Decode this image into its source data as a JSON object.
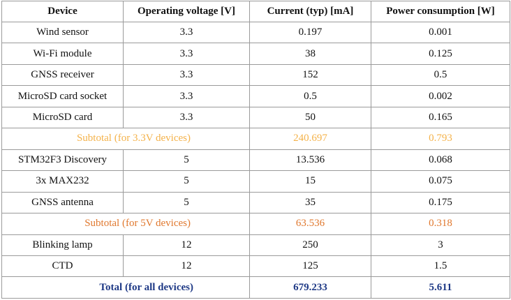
{
  "headers": [
    "Device",
    "Operating voltage [V]",
    "Current (typ) [mA]",
    "Power consumption [W]"
  ],
  "group_3v3": [
    {
      "device": "Wind sensor",
      "voltage": "3.3",
      "current": "0.197",
      "power": "0.001"
    },
    {
      "device": "Wi-Fi module",
      "voltage": "3.3",
      "current": "38",
      "power": "0.125"
    },
    {
      "device": "GNSS receiver",
      "voltage": "3.3",
      "current": "152",
      "power": "0.5"
    },
    {
      "device": "MicroSD card socket",
      "voltage": "3.3",
      "current": "0.5",
      "power": "0.002"
    },
    {
      "device": "MicroSD card",
      "voltage": "3.3",
      "current": "50",
      "power": "0.165"
    }
  ],
  "subtotal_3v3": {
    "label": "Subtotal (for 3.3V devices)",
    "current": "240.697",
    "power": "0.793"
  },
  "group_5v": [
    {
      "device": "STM32F3 Discovery",
      "voltage": "5",
      "current": "13.536",
      "power": "0.068"
    },
    {
      "device": "3x MAX232",
      "voltage": "5",
      "current": "15",
      "power": "0.075"
    },
    {
      "device": "GNSS antenna",
      "voltage": "5",
      "current": "35",
      "power": "0.175"
    }
  ],
  "subtotal_5v": {
    "label": "Subtotal (for 5V devices)",
    "current": "63.536",
    "power": "0.318"
  },
  "group_12v": [
    {
      "device": "Blinking lamp",
      "voltage": "12",
      "current": "250",
      "power": "3"
    },
    {
      "device": "CTD",
      "voltage": "12",
      "current": "125",
      "power": "1.5"
    }
  ],
  "total": {
    "label": "Total (for all devices)",
    "current": "679.233",
    "power": "5.611"
  },
  "colors": {
    "subtotal_3v3": "#f4b24a",
    "subtotal_5v": "#e0782e",
    "total": "#1f3a86"
  }
}
